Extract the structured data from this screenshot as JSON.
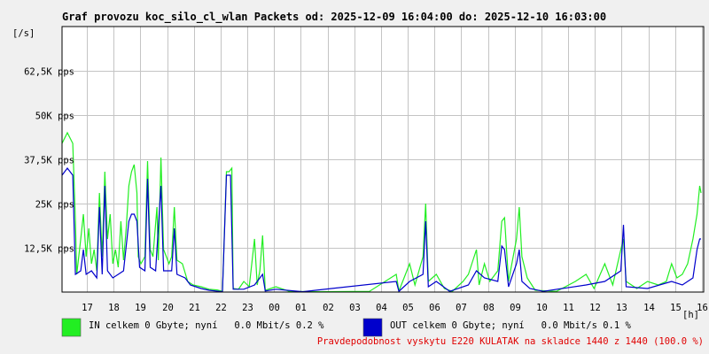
{
  "chart_data": {
    "type": "line",
    "title": "Graf provozu koc_silo_cl_wlan Packets od: 2025-12-09 16:04:00 do: 2025-12-10 16:03:00",
    "y_unit_label": "[/s]",
    "x_unit_label": "[h]",
    "y_range": [
      0,
      75000
    ],
    "x_range": [
      0,
      24
    ],
    "grid": true,
    "y_ticks": [
      {
        "value": 12500,
        "label": "12,5K pps"
      },
      {
        "value": 25000,
        "label": "25K pps"
      },
      {
        "value": 37500,
        "label": "37,5K pps"
      },
      {
        "value": 50000,
        "label": "50K pps"
      },
      {
        "value": 62500,
        "label": "62,5K pps"
      }
    ],
    "x_ticks": [
      {
        "value": 0.93,
        "label": "17"
      },
      {
        "value": 1.93,
        "label": "18"
      },
      {
        "value": 2.93,
        "label": "19"
      },
      {
        "value": 3.93,
        "label": "20"
      },
      {
        "value": 4.93,
        "label": "21"
      },
      {
        "value": 5.93,
        "label": "22"
      },
      {
        "value": 6.93,
        "label": "23"
      },
      {
        "value": 7.93,
        "label": "00"
      },
      {
        "value": 8.93,
        "label": "01"
      },
      {
        "value": 9.93,
        "label": "02"
      },
      {
        "value": 10.93,
        "label": "03"
      },
      {
        "value": 11.93,
        "label": "04"
      },
      {
        "value": 12.93,
        "label": "05"
      },
      {
        "value": 13.93,
        "label": "06"
      },
      {
        "value": 14.93,
        "label": "07"
      },
      {
        "value": 15.93,
        "label": "08"
      },
      {
        "value": 16.93,
        "label": "09"
      },
      {
        "value": 17.93,
        "label": "10"
      },
      {
        "value": 18.93,
        "label": "11"
      },
      {
        "value": 19.93,
        "label": "12"
      },
      {
        "value": 20.93,
        "label": "13"
      },
      {
        "value": 21.93,
        "label": "14"
      },
      {
        "value": 22.93,
        "label": "15"
      },
      {
        "value": 23.93,
        "label": "16"
      }
    ],
    "series": [
      {
        "color": "#22ee22",
        "points": [
          [
            0,
            42000
          ],
          [
            0.2,
            45000
          ],
          [
            0.4,
            42000
          ],
          [
            0.5,
            20000
          ],
          [
            0.55,
            5000
          ],
          [
            0.7,
            15000
          ],
          [
            0.8,
            22000
          ],
          [
            0.9,
            10000
          ],
          [
            1.0,
            18000
          ],
          [
            1.1,
            8000
          ],
          [
            1.2,
            12000
          ],
          [
            1.3,
            6000
          ],
          [
            1.4,
            28000
          ],
          [
            1.5,
            10000
          ],
          [
            1.6,
            34000
          ],
          [
            1.7,
            15000
          ],
          [
            1.8,
            22000
          ],
          [
            1.9,
            8000
          ],
          [
            2.0,
            12000
          ],
          [
            2.1,
            7000
          ],
          [
            2.2,
            20000
          ],
          [
            2.3,
            9000
          ],
          [
            2.4,
            18000
          ],
          [
            2.5,
            30000
          ],
          [
            2.6,
            34000
          ],
          [
            2.7,
            36000
          ],
          [
            2.8,
            28000
          ],
          [
            2.85,
            10000
          ],
          [
            2.95,
            8000
          ],
          [
            3.1,
            10000
          ],
          [
            3.2,
            37000
          ],
          [
            3.3,
            12000
          ],
          [
            3.4,
            10000
          ],
          [
            3.55,
            24000
          ],
          [
            3.6,
            9000
          ],
          [
            3.7,
            38000
          ],
          [
            3.8,
            12000
          ],
          [
            3.9,
            10000
          ],
          [
            4.0,
            8000
          ],
          [
            4.1,
            10000
          ],
          [
            4.2,
            24000
          ],
          [
            4.3,
            9000
          ],
          [
            4.5,
            8000
          ],
          [
            4.7,
            3000
          ],
          [
            4.9,
            2000
          ],
          [
            5.2,
            1500
          ],
          [
            5.5,
            800
          ],
          [
            5.8,
            600
          ],
          [
            6.0,
            200
          ],
          [
            6.15,
            34000
          ],
          [
            6.25,
            34000
          ],
          [
            6.35,
            35000
          ],
          [
            6.4,
            1000
          ],
          [
            6.6,
            800
          ],
          [
            6.8,
            3000
          ],
          [
            7.0,
            1500
          ],
          [
            7.2,
            15000
          ],
          [
            7.3,
            2000
          ],
          [
            7.4,
            6000
          ],
          [
            7.5,
            16000
          ],
          [
            7.6,
            500
          ],
          [
            8.0,
            1500
          ],
          [
            8.5,
            200
          ],
          [
            9.5,
            100
          ],
          [
            11.5,
            200
          ],
          [
            12.5,
            5000
          ],
          [
            12.6,
            300
          ],
          [
            13.0,
            8000
          ],
          [
            13.2,
            2000
          ],
          [
            13.5,
            10000
          ],
          [
            13.6,
            25000
          ],
          [
            13.7,
            3000
          ],
          [
            14.0,
            5000
          ],
          [
            14.3,
            1000
          ],
          [
            14.6,
            200
          ],
          [
            15.0,
            3000
          ],
          [
            15.2,
            5000
          ],
          [
            15.5,
            12000
          ],
          [
            15.6,
            2000
          ],
          [
            15.8,
            8000
          ],
          [
            16.0,
            3000
          ],
          [
            16.3,
            6000
          ],
          [
            16.45,
            20000
          ],
          [
            16.55,
            21000
          ],
          [
            16.7,
            3000
          ],
          [
            17.0,
            15000
          ],
          [
            17.1,
            24000
          ],
          [
            17.2,
            10000
          ],
          [
            17.4,
            4000
          ],
          [
            17.7,
            500
          ],
          [
            18.5,
            200
          ],
          [
            19.2,
            3000
          ],
          [
            19.6,
            5000
          ],
          [
            19.9,
            1000
          ],
          [
            20.3,
            8000
          ],
          [
            20.6,
            2000
          ],
          [
            20.9,
            12000
          ],
          [
            21.0,
            15000
          ],
          [
            21.1,
            3000
          ],
          [
            21.5,
            1000
          ],
          [
            21.9,
            3000
          ],
          [
            22.3,
            2000
          ],
          [
            22.6,
            3000
          ],
          [
            22.8,
            8000
          ],
          [
            23.0,
            4000
          ],
          [
            23.2,
            5000
          ],
          [
            23.4,
            8000
          ],
          [
            23.6,
            15000
          ],
          [
            23.75,
            22000
          ],
          [
            23.85,
            30000
          ],
          [
            23.9,
            28000
          ]
        ]
      },
      {
        "color": "#0000cc",
        "points": [
          [
            0,
            33000
          ],
          [
            0.2,
            35000
          ],
          [
            0.4,
            33000
          ],
          [
            0.5,
            5000
          ],
          [
            0.7,
            6000
          ],
          [
            0.8,
            12000
          ],
          [
            0.9,
            5000
          ],
          [
            1.1,
            6000
          ],
          [
            1.3,
            4000
          ],
          [
            1.4,
            24000
          ],
          [
            1.5,
            5000
          ],
          [
            1.6,
            30000
          ],
          [
            1.7,
            6000
          ],
          [
            1.9,
            4000
          ],
          [
            2.1,
            5000
          ],
          [
            2.3,
            6000
          ],
          [
            2.5,
            20000
          ],
          [
            2.6,
            22000
          ],
          [
            2.7,
            22000
          ],
          [
            2.8,
            20000
          ],
          [
            2.9,
            7000
          ],
          [
            3.1,
            6000
          ],
          [
            3.2,
            32000
          ],
          [
            3.3,
            7000
          ],
          [
            3.5,
            6000
          ],
          [
            3.7,
            30000
          ],
          [
            3.8,
            6000
          ],
          [
            4.1,
            6000
          ],
          [
            4.2,
            18000
          ],
          [
            4.3,
            5000
          ],
          [
            4.6,
            4000
          ],
          [
            4.8,
            2000
          ],
          [
            5.2,
            1000
          ],
          [
            5.5,
            500
          ],
          [
            6.0,
            100
          ],
          [
            6.15,
            33000
          ],
          [
            6.3,
            33000
          ],
          [
            6.4,
            800
          ],
          [
            6.8,
            800
          ],
          [
            7.2,
            2000
          ],
          [
            7.5,
            5000
          ],
          [
            7.6,
            300
          ],
          [
            8.0,
            800
          ],
          [
            9.0,
            100
          ],
          [
            12.5,
            3000
          ],
          [
            12.6,
            200
          ],
          [
            13.0,
            3000
          ],
          [
            13.5,
            5000
          ],
          [
            13.6,
            20000
          ],
          [
            13.7,
            1500
          ],
          [
            14.0,
            3000
          ],
          [
            14.5,
            200
          ],
          [
            15.2,
            2000
          ],
          [
            15.5,
            6000
          ],
          [
            15.8,
            4000
          ],
          [
            16.3,
            3000
          ],
          [
            16.45,
            13000
          ],
          [
            16.55,
            12000
          ],
          [
            16.7,
            1500
          ],
          [
            17.0,
            8000
          ],
          [
            17.1,
            12000
          ],
          [
            17.2,
            3000
          ],
          [
            17.5,
            1000
          ],
          [
            18.0,
            200
          ],
          [
            19.6,
            2000
          ],
          [
            20.3,
            3000
          ],
          [
            20.9,
            6000
          ],
          [
            21.0,
            19000
          ],
          [
            21.1,
            1500
          ],
          [
            21.9,
            1000
          ],
          [
            22.8,
            3000
          ],
          [
            23.2,
            2000
          ],
          [
            23.6,
            4000
          ],
          [
            23.75,
            12000
          ],
          [
            23.85,
            15000
          ],
          [
            23.9,
            15000
          ]
        ]
      }
    ],
    "legend": [
      {
        "color": "#22ee22",
        "text": "IN celkem 0 Gbyte; nyní   0.0 Mbit/s 0.2 %"
      },
      {
        "color": "#0000cc",
        "text": "OUT celkem 0 Gbyte; nyní   0.0 Mbit/s 0.1 %"
      }
    ],
    "footer_note": "Pravdepodobnost vyskytu E220 KULATAK na skladce 1440 z 1440 (100.0 %)"
  }
}
